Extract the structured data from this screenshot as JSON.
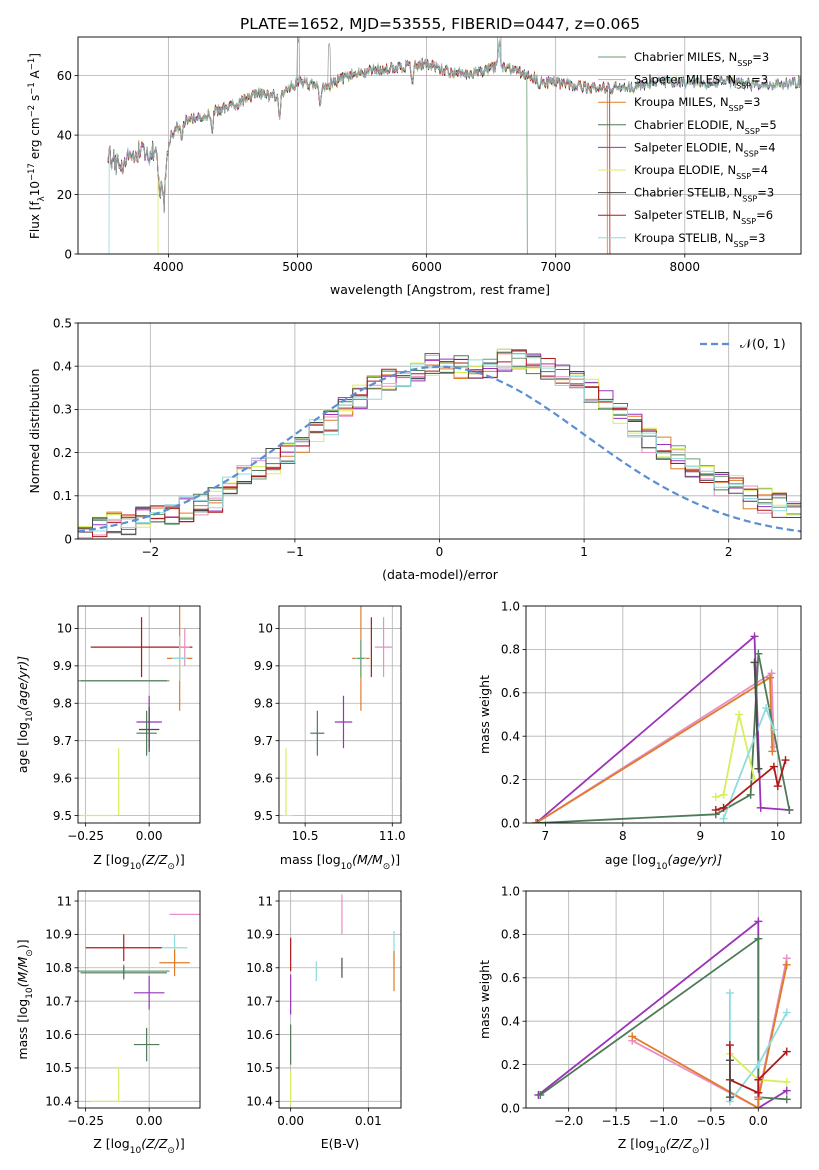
{
  "figure_title": "PLATE=1652, MJD=53555, FIBERID=0447, z=0.065",
  "models": [
    {
      "name": "Chabrier MILES",
      "nssp": "3",
      "color": "#6a9e73"
    },
    {
      "name": "Salpeter MILES",
      "nssp": "3",
      "color": "#e98fc6"
    },
    {
      "name": "Kroupa MILES",
      "nssp": "3",
      "color": "#e07b28"
    },
    {
      "name": "Chabrier ELODIE",
      "nssp": "5",
      "color": "#4e7a58"
    },
    {
      "name": "Salpeter ELODIE",
      "nssp": "4",
      "color": "#9a33b8"
    },
    {
      "name": "Kroupa ELODIE",
      "nssp": "4",
      "color": "#d7ef5a"
    },
    {
      "name": "Chabrier STELIB",
      "nssp": "3",
      "color": "#4a4a4a"
    },
    {
      "name": "Salpeter STELIB",
      "nssp": "6",
      "color": "#b01919"
    },
    {
      "name": "Kroupa STELIB",
      "nssp": "3",
      "color": "#8fdcdc"
    }
  ],
  "chart_data": [
    {
      "id": "spectrum",
      "type": "line",
      "xlabel": "wavelength [Angstrom, rest frame]",
      "ylabel_main": "Flux [f",
      "ylabel_sub": "λ",
      "ylabel_rest": "10",
      "ylabel_exp1": "−17",
      "ylabel_mid": " erg cm",
      "ylabel_exp2": "−2",
      "ylabel_s": " s",
      "ylabel_exp3": "−1",
      "ylabel_end": " A",
      "ylabel_exp4": "−1",
      "ylabel_close": "]",
      "xlim": [
        3300,
        8900
      ],
      "ylim": [
        0,
        73
      ],
      "xticks": [
        4000,
        5000,
        6000,
        7000,
        8000
      ],
      "yticks": [
        0,
        20,
        40,
        60
      ],
      "anchors": [
        [
          3530,
          33
        ],
        [
          3600,
          30
        ],
        [
          3700,
          33
        ],
        [
          3800,
          34
        ],
        [
          3900,
          34
        ],
        [
          3960,
          24
        ],
        [
          4020,
          40
        ],
        [
          4100,
          44
        ],
        [
          4300,
          47
        ],
        [
          4500,
          50
        ],
        [
          4700,
          54
        ],
        [
          4860,
          53
        ],
        [
          5000,
          58
        ],
        [
          5200,
          56
        ],
        [
          5400,
          60
        ],
        [
          5600,
          62
        ],
        [
          5800,
          63
        ],
        [
          6000,
          64
        ],
        [
          6200,
          61
        ],
        [
          6400,
          61
        ],
        [
          6563,
          63
        ],
        [
          6700,
          62
        ],
        [
          6900,
          58
        ],
        [
          7100,
          57
        ],
        [
          7300,
          56
        ],
        [
          7500,
          56
        ],
        [
          7700,
          57
        ],
        [
          7900,
          58
        ],
        [
          8100,
          57
        ],
        [
          8300,
          58
        ],
        [
          8500,
          57
        ],
        [
          8700,
          57
        ],
        [
          8900,
          58
        ]
      ],
      "cutoffs": [
        {
          "model": 8,
          "start": 3540
        },
        {
          "model": 5,
          "start": 3920
        },
        {
          "model": 2,
          "end": 7400
        },
        {
          "model": 7,
          "end": 7420
        },
        {
          "model": 0,
          "end": 6780
        }
      ],
      "nssp_label": "N",
      "nssp_sub": "SSP"
    },
    {
      "id": "residuals",
      "type": "histogram",
      "xlabel": "(data-model)/error",
      "ylabel": "Normed distribution",
      "xlim": [
        -2.5,
        2.5
      ],
      "ylim": [
        0,
        0.5
      ],
      "xticks": [
        -2,
        -1,
        0,
        1,
        2
      ],
      "yticks": [
        0,
        0.1,
        0.2,
        0.3,
        0.4,
        0.5
      ],
      "bin_width": 0.1,
      "bin_start": -2.5,
      "hist_values": [
        0.02,
        0.03,
        0.04,
        0.04,
        0.05,
        0.06,
        0.06,
        0.07,
        0.08,
        0.09,
        0.12,
        0.14,
        0.16,
        0.18,
        0.2,
        0.22,
        0.25,
        0.27,
        0.3,
        0.33,
        0.35,
        0.37,
        0.38,
        0.39,
        0.4,
        0.41,
        0.4,
        0.4,
        0.4,
        0.41,
        0.42,
        0.4,
        0.39,
        0.38,
        0.37,
        0.34,
        0.32,
        0.29,
        0.26,
        0.23,
        0.21,
        0.19,
        0.17,
        0.15,
        0.13,
        0.12,
        0.1,
        0.09,
        0.08,
        0.06
      ],
      "legend_label": "𝒩(0, 1)",
      "normal_color": "#5b8fd4"
    },
    {
      "id": "age-vs-z",
      "type": "errorbar",
      "xlabel_main": "Z [log",
      "xlabel_sub": "10",
      "xlabel_rest": "(Z/Z",
      "xlabel_sun": "⊙",
      "xlabel_close": ")]",
      "ylabel_main": "age  [log",
      "ylabel_sub": "10",
      "ylabel_rest": "(age/yr)]",
      "xlim": [
        -0.28,
        0.2
      ],
      "ylim": [
        9.48,
        10.06
      ],
      "xticks": [
        -0.25,
        0.0
      ],
      "xticklabels": [
        "−0.25",
        "0.00"
      ],
      "yticks": [
        9.5,
        9.6,
        9.7,
        9.8,
        9.9,
        10.0
      ],
      "points": [
        {
          "m": 7,
          "x": -0.03,
          "y": 9.95,
          "xe": 0.2,
          "ye": 0.08
        },
        {
          "m": 2,
          "x": 0.12,
          "y": 9.92,
          "xe": 0.05,
          "ye": 0.14
        },
        {
          "m": 1,
          "x": 0.14,
          "y": 9.95,
          "xe": 0.02,
          "ye": 0.05
        },
        {
          "m": 8,
          "x": 0.12,
          "y": 9.92,
          "xe": 0.03,
          "ye": 0.06
        },
        {
          "m": 0,
          "x": -0.1,
          "y": 9.86,
          "xe": 0.18,
          "ye": 0.0
        },
        {
          "m": 3,
          "x": -0.1,
          "y": 9.86,
          "xe": 0.17,
          "ye": 0.0
        },
        {
          "m": 4,
          "x": 0.0,
          "y": 9.75,
          "xe": 0.05,
          "ye": 0.07
        },
        {
          "m": 6,
          "x": 0.0,
          "y": 9.73,
          "xe": 0.04,
          "ye": 0.06
        },
        {
          "m": 3,
          "x": -0.01,
          "y": 9.72,
          "xe": 0.04,
          "ye": 0.06
        },
        {
          "m": 5,
          "x": -0.2,
          "y": 9.5,
          "xe": 0.07,
          "ye": 0.0
        },
        {
          "m": 5,
          "x": -0.12,
          "y": 9.59,
          "xe": 0.0,
          "ye": 0.09
        }
      ]
    },
    {
      "id": "age-vs-mass",
      "type": "errorbar",
      "xlabel_main": "mass [log",
      "xlabel_sub": "10",
      "xlabel_rest": "(M/M",
      "xlabel_sun": "⊙",
      "xlabel_close": ")]",
      "xlim": [
        10.35,
        11.05
      ],
      "ylim": [
        9.48,
        10.06
      ],
      "xticks": [
        10.5,
        11.0
      ],
      "xticklabels": [
        "10.5",
        "11.0"
      ],
      "yticks": [
        9.5,
        9.6,
        9.7,
        9.8,
        9.9,
        10.0
      ],
      "points": [
        {
          "m": 7,
          "x": 10.88,
          "y": 9.95,
          "xe": 0.0,
          "ye": 0.08
        },
        {
          "m": 2,
          "x": 10.82,
          "y": 9.92,
          "xe": 0.05,
          "ye": 0.14
        },
        {
          "m": 1,
          "x": 10.95,
          "y": 9.95,
          "xe": 0.05,
          "ye": 0.08
        },
        {
          "m": 8,
          "x": 10.82,
          "y": 9.92,
          "xe": 0.03,
          "ye": 0.05
        },
        {
          "m": 0,
          "x": 10.82,
          "y": 9.92,
          "xe": 0.02,
          "ye": 0.05
        },
        {
          "m": 4,
          "x": 10.72,
          "y": 9.75,
          "xe": 0.05,
          "ye": 0.07
        },
        {
          "m": 3,
          "x": 10.57,
          "y": 9.72,
          "xe": 0.04,
          "ye": 0.06
        },
        {
          "m": 5,
          "x": 10.4,
          "y": 9.5,
          "xe": 0.03,
          "ye": 0.0
        },
        {
          "m": 5,
          "x": 10.39,
          "y": 9.59,
          "xe": 0.0,
          "ye": 0.09
        }
      ]
    },
    {
      "id": "weight-vs-age",
      "type": "line",
      "xlabel_main": "age  [log",
      "xlabel_sub": "10",
      "xlabel_rest": "(age/yr)]",
      "ylabel": "mass weight",
      "xlim": [
        6.75,
        10.3
      ],
      "ylim": [
        0,
        1.0
      ],
      "xticks": [
        7,
        8,
        9,
        10
      ],
      "yticks": [
        0,
        0.2,
        0.4,
        0.6,
        0.8,
        1.0
      ],
      "yticklabels": [
        "0.0",
        "0.2",
        "0.4",
        "0.6",
        "0.8",
        "1.0"
      ],
      "series": [
        {
          "m": 4,
          "x": [
            6.88,
            9.7,
            9.78,
            10.15
          ],
          "y": [
            0.0,
            0.86,
            0.07,
            0.06
          ]
        },
        {
          "m": 1,
          "x": [
            6.88,
            9.92,
            9.95
          ],
          "y": [
            0.0,
            0.69,
            0.35
          ]
        },
        {
          "m": 2,
          "x": [
            6.88,
            9.9,
            9.93
          ],
          "y": [
            0.0,
            0.67,
            0.33
          ]
        },
        {
          "m": 3,
          "x": [
            6.9,
            9.2,
            9.65,
            9.75,
            10.15
          ],
          "y": [
            0.0,
            0.04,
            0.13,
            0.78,
            0.06
          ]
        },
        {
          "m": 5,
          "x": [
            9.2,
            9.3,
            9.5,
            9.7
          ],
          "y": [
            0.12,
            0.13,
            0.5,
            0.2
          ]
        },
        {
          "m": 8,
          "x": [
            9.3,
            9.85,
            9.95
          ],
          "y": [
            0.02,
            0.53,
            0.43
          ]
        },
        {
          "m": 7,
          "x": [
            9.2,
            9.3,
            9.95,
            10.0,
            10.1
          ],
          "y": [
            0.06,
            0.07,
            0.26,
            0.17,
            0.29
          ]
        },
        {
          "m": 6,
          "x": [
            9.7,
            9.75
          ],
          "y": [
            0.74,
            0.25
          ]
        }
      ]
    },
    {
      "id": "mass-vs-z",
      "type": "errorbar",
      "xlabel_main": "Z [log",
      "xlabel_sub": "10",
      "xlabel_rest": "(Z/Z",
      "xlabel_sun": "⊙",
      "xlabel_close": ")]",
      "ylabel_main": "mass [log",
      "ylabel_sub": "10",
      "ylabel_rest": "(M/M",
      "ylabel_sun": "⊙",
      "ylabel_close": ")]",
      "xlim": [
        -0.28,
        0.2
      ],
      "ylim": [
        10.38,
        11.03
      ],
      "xticks": [
        -0.25,
        0.0
      ],
      "xticklabels": [
        "−0.25",
        "0.00"
      ],
      "yticks": [
        10.4,
        10.5,
        10.6,
        10.7,
        10.8,
        10.9,
        11.0
      ],
      "points": [
        {
          "m": 1,
          "x": 0.14,
          "y": 10.96,
          "xe": 0.06,
          "ye": 0.0
        },
        {
          "m": 7,
          "x": -0.1,
          "y": 10.86,
          "xe": 0.15,
          "ye": 0.04
        },
        {
          "m": 8,
          "x": 0.1,
          "y": 10.86,
          "xe": 0.05,
          "ye": 0.04
        },
        {
          "m": 2,
          "x": 0.1,
          "y": 10.815,
          "xe": 0.06,
          "ye": 0.04
        },
        {
          "m": 0,
          "x": -0.1,
          "y": 10.79,
          "xe": 0.18,
          "ye": 0.02
        },
        {
          "m": 3,
          "x": -0.1,
          "y": 10.785,
          "xe": 0.17,
          "ye": 0.02
        },
        {
          "m": 4,
          "x": 0.0,
          "y": 10.725,
          "xe": 0.06,
          "ye": 0.05
        },
        {
          "m": 3,
          "x": -0.01,
          "y": 10.57,
          "xe": 0.05,
          "ye": 0.05
        },
        {
          "m": 5,
          "x": -0.17,
          "y": 10.4,
          "xe": 0.06,
          "ye": 0.0
        },
        {
          "m": 5,
          "x": -0.12,
          "y": 10.45,
          "xe": 0.0,
          "ye": 0.05
        }
      ]
    },
    {
      "id": "mass-vs-ebv",
      "type": "errorbar",
      "xlabel": "E(B-V)",
      "xlim": [
        -0.0015,
        0.0142
      ],
      "ylim": [
        10.38,
        11.03
      ],
      "xticks": [
        0.0,
        0.01
      ],
      "xticklabels": [
        "0.00",
        "0.01"
      ],
      "yticks": [
        10.4,
        10.5,
        10.6,
        10.7,
        10.8,
        10.9,
        11.0
      ],
      "points": [
        {
          "m": 1,
          "x": 0.0066,
          "y": 10.96,
          "xe": 0.0,
          "ye": 0.06
        },
        {
          "m": 8,
          "x": 0.0133,
          "y": 10.86,
          "xe": 0.0,
          "ye": 0.05
        },
        {
          "m": 2,
          "x": 0.0133,
          "y": 10.79,
          "xe": 0.0,
          "ye": 0.06
        },
        {
          "m": 6,
          "x": 0.0066,
          "y": 10.8,
          "xe": 0.0,
          "ye": 0.03
        },
        {
          "m": 8,
          "x": 0.0033,
          "y": 10.79,
          "xe": 0.0,
          "ye": 0.03
        },
        {
          "m": 7,
          "x": 0.0,
          "y": 10.84,
          "xe": 0.0,
          "ye": 0.05
        },
        {
          "m": 4,
          "x": 0.0,
          "y": 10.72,
          "xe": 0.0,
          "ye": 0.06
        },
        {
          "m": 3,
          "x": 0.0,
          "y": 10.57,
          "xe": 0.0,
          "ye": 0.06
        },
        {
          "m": 5,
          "x": 0.0,
          "y": 10.44,
          "xe": 0.0,
          "ye": 0.05
        }
      ]
    },
    {
      "id": "weight-vs-z",
      "type": "line",
      "xlabel_main": "Z [log",
      "xlabel_sub": "10",
      "xlabel_rest": "(Z/Z",
      "xlabel_sun": "⊙",
      "xlabel_close": ")]",
      "ylabel": "mass weight",
      "xlim": [
        -2.45,
        0.45
      ],
      "ylim": [
        0,
        1.0
      ],
      "xticks": [
        -2.0,
        -1.5,
        -1.0,
        -0.5,
        0.0
      ],
      "xticklabels": [
        "−2.0",
        "−1.5",
        "−1.0",
        "−0.5",
        "0.0"
      ],
      "yticks": [
        0,
        0.2,
        0.4,
        0.6,
        0.8,
        1.0
      ],
      "yticklabels": [
        "0.0",
        "0.2",
        "0.4",
        "0.6",
        "0.8",
        "1.0"
      ],
      "series": [
        {
          "m": 4,
          "x": [
            -2.32,
            0.0,
            0.0,
            0.3
          ],
          "y": [
            0.06,
            0.86,
            0.0,
            0.08
          ]
        },
        {
          "m": 3,
          "x": [
            -2.3,
            0.0,
            0.0,
            0.3
          ],
          "y": [
            0.06,
            0.78,
            0.05,
            0.04
          ]
        },
        {
          "m": 1,
          "x": [
            -1.33,
            0.0,
            0.0,
            0.3
          ],
          "y": [
            0.31,
            0.0,
            0.05,
            0.69
          ]
        },
        {
          "m": 2,
          "x": [
            -1.33,
            0.0,
            0.0,
            0.3
          ],
          "y": [
            0.33,
            0.0,
            0.04,
            0.66
          ]
        },
        {
          "m": 8,
          "x": [
            -0.3,
            -0.3,
            0.0,
            0.3
          ],
          "y": [
            0.53,
            0.03,
            0.2,
            0.44
          ]
        },
        {
          "m": 5,
          "x": [
            -0.3,
            0.0,
            0.3
          ],
          "y": [
            0.25,
            0.13,
            0.12
          ]
        },
        {
          "m": 7,
          "x": [
            -0.3,
            -0.3,
            0.0,
            0.0,
            0.3
          ],
          "y": [
            0.29,
            0.13,
            0.07,
            0.13,
            0.26
          ]
        },
        {
          "m": 6,
          "x": [
            -0.3,
            -0.3
          ],
          "y": [
            0.22,
            0.05
          ]
        }
      ]
    }
  ]
}
